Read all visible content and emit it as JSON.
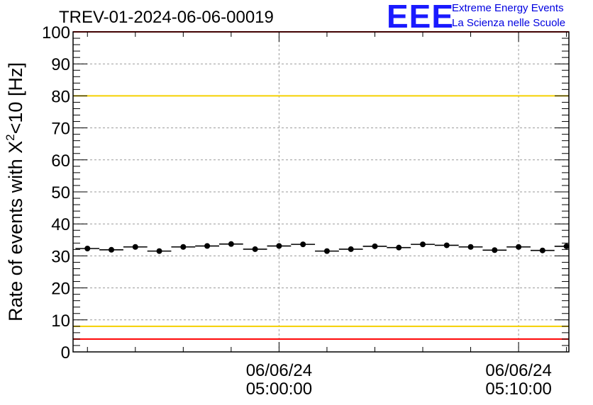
{
  "chart_data": {
    "type": "scatter",
    "title": "TREV-01-2024-06-06-00019",
    "ylabel_main": "Rate of events with X",
    "ylabel_sup": "2",
    "ylabel_tail": "<10 [Hz]",
    "ylim": [
      0,
      100
    ],
    "yticks": [
      "0",
      "10",
      "20",
      "30",
      "40",
      "50",
      "60",
      "70",
      "80",
      "90",
      "100"
    ],
    "x_range_minutes": [
      -8.6,
      12.1
    ],
    "xticks": [
      {
        "minute": 0,
        "date": "06/06/24",
        "time": "05:00:00"
      },
      {
        "minute": 10,
        "date": "06/06/24",
        "time": "05:10:00"
      }
    ],
    "bin_width_minutes": 1,
    "x_minutes": [
      -8,
      -7,
      -6,
      -5,
      -4,
      -3,
      -2,
      -1,
      0,
      1,
      2,
      3,
      4,
      5,
      6,
      7,
      8,
      9,
      10,
      11,
      12
    ],
    "values": [
      32.3,
      31.9,
      32.8,
      31.5,
      32.8,
      33.1,
      33.7,
      32.1,
      33.1,
      33.6,
      31.5,
      32.1,
      33.0,
      32.6,
      33.6,
      33.3,
      32.8,
      31.8,
      32.8,
      31.7,
      33.0
    ],
    "reference_lines": [
      {
        "value": 100,
        "color": "#ff0000"
      },
      {
        "value": 80,
        "color": "#f5d000"
      },
      {
        "value": 8,
        "color": "#f5d000"
      },
      {
        "value": 4,
        "color": "#ff0000"
      }
    ],
    "grid": true
  },
  "logo": {
    "mark": "EEE",
    "line1": "Extreme Energy Events",
    "line2": "La Scienza nelle Scuole"
  }
}
